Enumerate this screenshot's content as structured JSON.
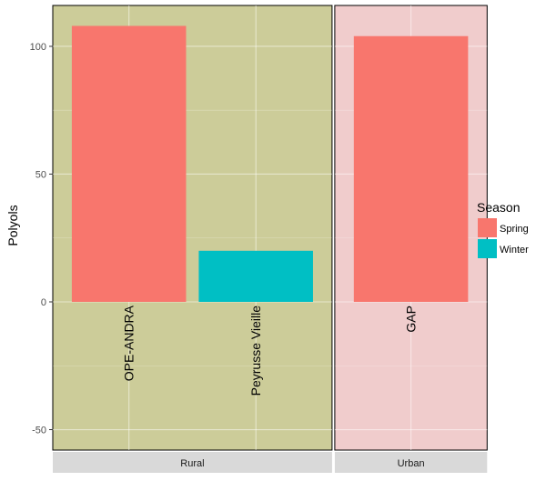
{
  "chart_data": {
    "type": "bar",
    "ylabel": "Polyols",
    "ylim": [
      -58,
      116
    ],
    "yticks": [
      -50,
      0,
      50,
      100
    ],
    "grid": true,
    "legend": {
      "title": "Season",
      "position": "right",
      "entries": [
        {
          "name": "Spring",
          "color": "#F8766D"
        },
        {
          "name": "Winter",
          "color": "#00BFC4"
        }
      ]
    },
    "facets": [
      {
        "name": "Rural",
        "background": "#CCCC99",
        "bars": [
          {
            "label": "OPE-ANDRA",
            "season": "Spring",
            "value": 108
          },
          {
            "label": "Peyrusse Vieille",
            "season": "Winter",
            "value": 20
          }
        ]
      },
      {
        "name": "Urban",
        "background": "#F0CCCC",
        "bars": [
          {
            "label": "GAP",
            "season": "Spring",
            "value": 104
          }
        ]
      }
    ]
  }
}
